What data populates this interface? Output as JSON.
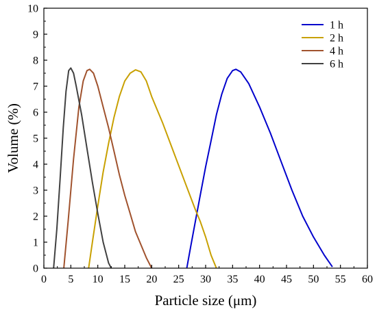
{
  "chart_data": {
    "type": "line",
    "title": "",
    "xlabel": "Particle size (μm)",
    "ylabel": "Volume (%)",
    "xlim": [
      0,
      60
    ],
    "ylim": [
      0,
      10
    ],
    "x_ticks": [
      0,
      5,
      10,
      15,
      20,
      25,
      30,
      35,
      40,
      45,
      50,
      55,
      60
    ],
    "y_ticks": [
      0,
      1,
      2,
      3,
      4,
      5,
      6,
      7,
      8,
      9,
      10
    ],
    "grid": false,
    "legend_position": "top-right",
    "series": [
      {
        "name": "1 h",
        "color": "#0000cc",
        "points": [
          [
            26.5,
            0
          ],
          [
            27.2,
            0.8
          ],
          [
            28,
            1.7
          ],
          [
            29,
            2.8
          ],
          [
            30,
            3.9
          ],
          [
            31,
            4.9
          ],
          [
            32,
            5.9
          ],
          [
            33,
            6.7
          ],
          [
            34,
            7.3
          ],
          [
            35,
            7.6
          ],
          [
            35.6,
            7.65
          ],
          [
            36.5,
            7.55
          ],
          [
            38,
            7.1
          ],
          [
            40,
            6.2
          ],
          [
            42,
            5.2
          ],
          [
            44,
            4.1
          ],
          [
            46,
            3.0
          ],
          [
            48,
            2.0
          ],
          [
            50,
            1.2
          ],
          [
            52,
            0.5
          ],
          [
            53.5,
            0.05
          ]
        ]
      },
      {
        "name": "2 h",
        "color": "#c8a000",
        "points": [
          [
            8.3,
            0
          ],
          [
            9,
            1.0
          ],
          [
            10,
            2.4
          ],
          [
            11,
            3.7
          ],
          [
            12,
            4.8
          ],
          [
            13,
            5.8
          ],
          [
            14,
            6.6
          ],
          [
            15,
            7.2
          ],
          [
            16,
            7.5
          ],
          [
            17,
            7.63
          ],
          [
            18,
            7.55
          ],
          [
            19,
            7.2
          ],
          [
            20,
            6.6
          ],
          [
            22,
            5.6
          ],
          [
            24,
            4.5
          ],
          [
            26,
            3.4
          ],
          [
            28,
            2.3
          ],
          [
            29,
            1.8
          ],
          [
            30,
            1.2
          ],
          [
            31,
            0.5
          ],
          [
            32,
            0
          ]
        ]
      },
      {
        "name": "4 h",
        "color": "#a0522d",
        "points": [
          [
            3.7,
            0
          ],
          [
            4.5,
            1.8
          ],
          [
            5.5,
            4.2
          ],
          [
            6.5,
            6.2
          ],
          [
            7.3,
            7.2
          ],
          [
            8,
            7.6
          ],
          [
            8.5,
            7.65
          ],
          [
            9.2,
            7.5
          ],
          [
            10,
            7.0
          ],
          [
            11,
            6.2
          ],
          [
            12,
            5.4
          ],
          [
            13,
            4.5
          ],
          [
            14,
            3.6
          ],
          [
            15,
            2.8
          ],
          [
            16,
            2.1
          ],
          [
            17,
            1.4
          ],
          [
            18,
            0.9
          ],
          [
            19,
            0.4
          ],
          [
            20,
            0
          ]
        ]
      },
      {
        "name": "6 h",
        "color": "#404040",
        "points": [
          [
            1.8,
            0
          ],
          [
            2.4,
            1.5
          ],
          [
            3,
            3.4
          ],
          [
            3.6,
            5.4
          ],
          [
            4.1,
            6.8
          ],
          [
            4.6,
            7.6
          ],
          [
            5,
            7.7
          ],
          [
            5.5,
            7.5
          ],
          [
            6,
            7.0
          ],
          [
            7,
            5.9
          ],
          [
            8,
            4.6
          ],
          [
            9,
            3.3
          ],
          [
            10,
            2.1
          ],
          [
            11,
            1.0
          ],
          [
            12,
            0.2
          ],
          [
            12.5,
            0
          ]
        ]
      }
    ]
  }
}
